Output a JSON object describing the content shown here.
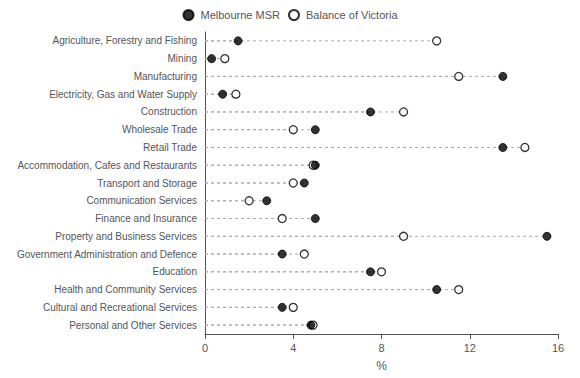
{
  "chart_data": {
    "type": "dot",
    "orientation": "horizontal",
    "categories": [
      "Agriculture, Forestry and Fishing",
      "Mining",
      "Manufacturing",
      "Electricity, Gas and Water Supply",
      "Construction",
      "Wholesale Trade",
      "Retail Trade",
      "Accommodation, Cafes and Restaurants",
      "Transport and Storage",
      "Communication Services",
      "Finance and Insurance",
      "Property and Business Services",
      "Government Administration and Defence",
      "Education",
      "Health and Community Services",
      "Cultural and Recreational Services",
      "Personal and Other Services"
    ],
    "series": [
      {
        "name": "Melbourne MSR",
        "color": "#000000",
        "marker": "filled_circle",
        "values": [
          1.5,
          0.3,
          13.5,
          0.8,
          7.5,
          5.0,
          13.5,
          5.0,
          4.5,
          2.8,
          5.0,
          15.5,
          3.5,
          7.5,
          10.5,
          3.5,
          4.8
        ]
      },
      {
        "name": "Balance of Victoria",
        "color": "#000000",
        "marker": "open_circle",
        "values": [
          10.5,
          0.9,
          11.5,
          1.4,
          9.0,
          4.0,
          14.5,
          4.9,
          4.0,
          2.0,
          3.5,
          9.0,
          4.5,
          8.0,
          11.5,
          4.0,
          4.9
        ]
      }
    ],
    "xlabel": "%",
    "xlim": [
      0,
      16
    ],
    "xticks": [
      0,
      4,
      8,
      12,
      16
    ],
    "grid": false,
    "legend": "top"
  }
}
